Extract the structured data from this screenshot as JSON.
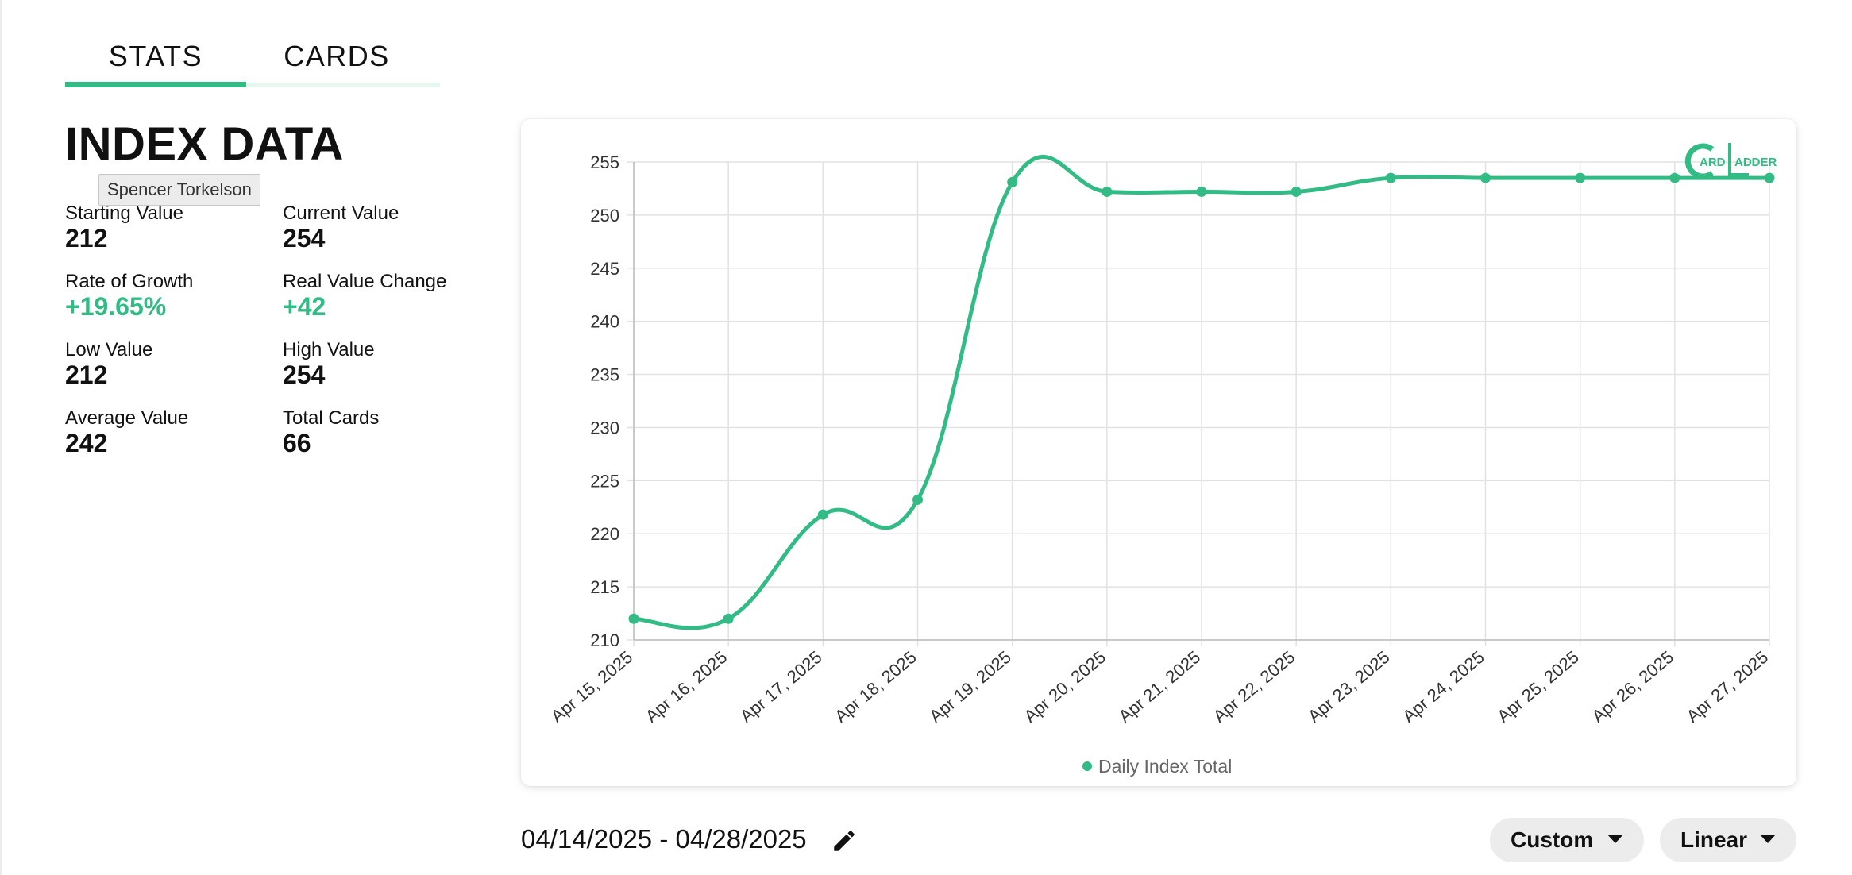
{
  "tabs": [
    {
      "label": "STATS",
      "active": true
    },
    {
      "label": "CARDS",
      "active": false
    }
  ],
  "index_title": "INDEX DATA",
  "tooltip": "Spencer Torkelson",
  "stats": {
    "starting_value": {
      "label": "Starting Value",
      "value": "212"
    },
    "current_value": {
      "label": "Current Value",
      "value": "254"
    },
    "rate_of_growth": {
      "label": "Rate of Growth",
      "value": "+19.65%"
    },
    "real_value_change": {
      "label": "Real Value Change",
      "value": "+42"
    },
    "low_value": {
      "label": "Low Value",
      "value": "212"
    },
    "high_value": {
      "label": "High Value",
      "value": "254"
    },
    "average_value": {
      "label": "Average Value",
      "value": "242"
    },
    "total_cards": {
      "label": "Total Cards",
      "value": "66"
    }
  },
  "colors": {
    "accent": "#33bb85",
    "grid": "#e2e2e2",
    "axis": "#bdbdbd"
  },
  "logo": {
    "text_left": "ARD",
    "text_right": "ADDER"
  },
  "chart_data": {
    "type": "line",
    "categories": [
      "Apr 15, 2025",
      "Apr 16, 2025",
      "Apr 17, 2025",
      "Apr 18, 2025",
      "Apr 19, 2025",
      "Apr 20, 2025",
      "Apr 21, 2025",
      "Apr 22, 2025",
      "Apr 23, 2025",
      "Apr 24, 2025",
      "Apr 25, 2025",
      "Apr 26, 2025",
      "Apr 27, 2025"
    ],
    "series": [
      {
        "name": "Daily Index Total",
        "values": [
          212,
          212,
          221.8,
          223.2,
          253.1,
          252.2,
          252.2,
          252.2,
          253.5,
          253.5,
          253.5,
          253.5,
          253.5
        ]
      }
    ],
    "ylim": [
      210,
      255
    ],
    "yticks": [
      255,
      250,
      245,
      240,
      235,
      230,
      225,
      220,
      215,
      210
    ],
    "grid": true,
    "legend": "bottom-center"
  },
  "date_range": "04/14/2025 - 04/28/2025",
  "controls": {
    "range_label": "Custom",
    "scale_label": "Linear"
  },
  "icons": {
    "edit": "pencil-icon",
    "dropdown": "caret-down-icon",
    "logo": "card-ladder-logo"
  }
}
